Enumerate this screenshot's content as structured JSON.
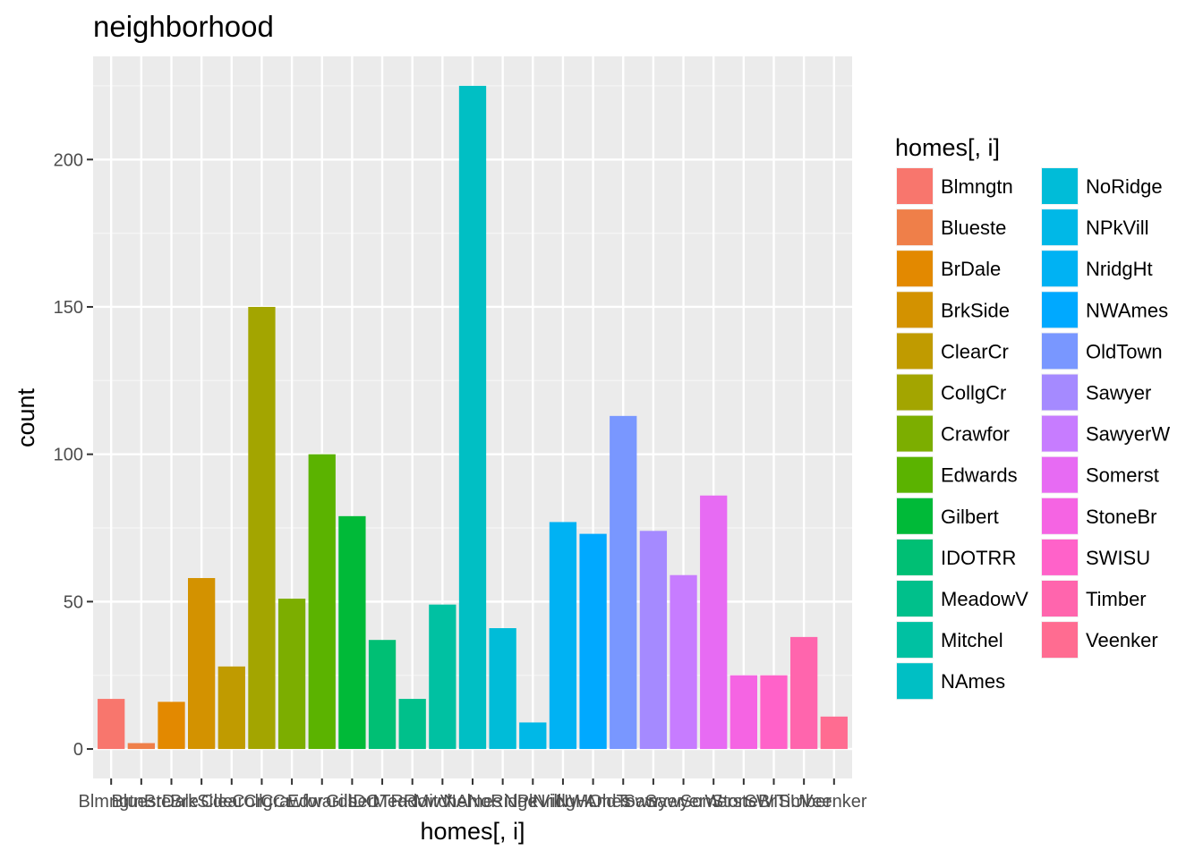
{
  "chart_data": {
    "type": "bar",
    "title": "neighborhood",
    "xlabel": "homes[, i]",
    "ylabel": "count",
    "ylim": [
      -10,
      235
    ],
    "yticks": [
      0,
      50,
      100,
      150,
      200
    ],
    "grid": true,
    "legend_title": "homes[, i]",
    "legend_position": "right",
    "categories": [
      "Blmngtn",
      "Blueste",
      "BrDale",
      "BrkSide",
      "ClearCr",
      "CollgCr",
      "Crawfor",
      "Edwards",
      "Gilbert",
      "IDOTRR",
      "MeadowV",
      "Mitchel",
      "NAmes",
      "NoRidge",
      "NPkVill",
      "NridgHt",
      "NWAmes",
      "OldTown",
      "Sawyer",
      "SawyerW",
      "Somerst",
      "StoneBr",
      "SWISU",
      "Timber",
      "Veenker"
    ],
    "values": [
      17,
      2,
      16,
      58,
      28,
      150,
      51,
      100,
      79,
      37,
      17,
      49,
      225,
      41,
      9,
      77,
      73,
      113,
      74,
      59,
      86,
      25,
      25,
      38,
      11
    ],
    "colors": [
      "#F8766D",
      "#EF7F49",
      "#E38900",
      "#D39200",
      "#C09B00",
      "#A3A500",
      "#7CAE00",
      "#5BB300",
      "#00BA38",
      "#00BF74",
      "#00C08B",
      "#00C1A2",
      "#00BFC4",
      "#00BCD8",
      "#00B8E7",
      "#00B2F3",
      "#00A9FF",
      "#7997FF",
      "#A58AFF",
      "#C77CFF",
      "#E76BF3",
      "#F564E3",
      "#FF62C9",
      "#FF65AD",
      "#FF6C91"
    ]
  }
}
